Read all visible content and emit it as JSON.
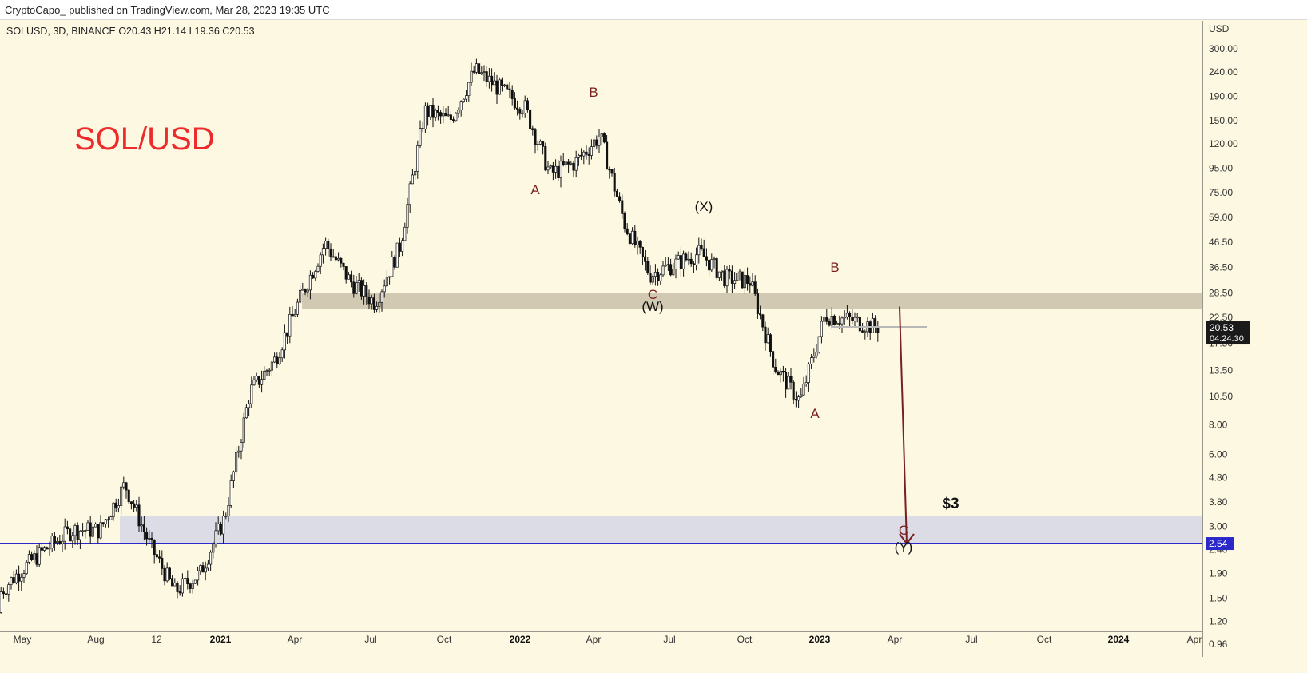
{
  "header": {
    "publish_note": "CryptoCapo_ published on TradingView.com, Mar 28, 2023 19:35 UTC"
  },
  "legend": {
    "symbol": "SOLUSD, 3D, BINANCE",
    "open": "O20.43",
    "high": "H21.14",
    "low": "L19.36",
    "close": "C20.53"
  },
  "title": "SOL/USD",
  "price_axis": {
    "currency": "USD",
    "ticks": [
      "300.00",
      "240.00",
      "190.00",
      "150.00",
      "120.00",
      "95.00",
      "75.00",
      "59.00",
      "46.50",
      "36.50",
      "28.50",
      "22.50",
      "17.50",
      "13.50",
      "10.50",
      "8.00",
      "6.00",
      "4.80",
      "3.80",
      "3.00",
      "2.40",
      "1.90",
      "1.50",
      "1.20",
      "0.96"
    ],
    "last_price": "20.53",
    "countdown": "04:24:30",
    "line_price": "2.54"
  },
  "time_axis": {
    "labels": [
      "May",
      "Aug",
      "12",
      "2021",
      "Apr",
      "Jul",
      "Oct",
      "2022",
      "Apr",
      "Jul",
      "Oct",
      "2023",
      "Apr",
      "Jul",
      "Oct",
      "2024",
      "Apr"
    ]
  },
  "annotations": {
    "target_label": "$3",
    "waves": [
      {
        "text": "A",
        "style": "red"
      },
      {
        "text": "B",
        "style": "red"
      },
      {
        "text": "C",
        "style": "red"
      },
      {
        "text": "(W)",
        "style": "black"
      },
      {
        "text": "(X)",
        "style": "black"
      },
      {
        "text": "B",
        "style": "red"
      },
      {
        "text": "A",
        "style": "red"
      },
      {
        "text": "C",
        "style": "red"
      },
      {
        "text": "(Y)",
        "style": "black"
      }
    ]
  },
  "colors": {
    "background": "#fdf8e1",
    "title": "#ee2b2b",
    "resistance_zone": "#c9c1a8",
    "support_zone": "#dbdce6",
    "horizontal_line": "#2b28c9",
    "arrow": "#7a1f1f",
    "candle_up": "#ffffff",
    "candle_down": "#111111"
  },
  "chart_data": {
    "type": "candlestick",
    "symbol": "SOLUSD",
    "interval": "3D",
    "exchange": "BINANCE",
    "y_scale": "log",
    "ylim": [
      0.85,
      340
    ],
    "last": {
      "open": 20.43,
      "high": 21.14,
      "low": 19.36,
      "close": 20.53
    },
    "approx_closes": [
      {
        "x": "2020-08",
        "y": 2.9
      },
      {
        "x": "2020-09",
        "y": 4.5
      },
      {
        "x": "2020-10",
        "y": 2.5
      },
      {
        "x": "2020-11",
        "y": 1.6
      },
      {
        "x": "2020-12",
        "y": 1.9
      },
      {
        "x": "2021-01",
        "y": 3.3
      },
      {
        "x": "2021-02",
        "y": 11
      },
      {
        "x": "2021-03",
        "y": 15
      },
      {
        "x": "2021-04",
        "y": 27
      },
      {
        "x": "2021-05",
        "y": 46
      },
      {
        "x": "2021-06",
        "y": 32
      },
      {
        "x": "2021-07",
        "y": 26
      },
      {
        "x": "2021-08",
        "y": 45
      },
      {
        "x": "2021-09",
        "y": 165
      },
      {
        "x": "2021-10",
        "y": 150
      },
      {
        "x": "2021-11",
        "y": 245
      },
      {
        "x": "2022-01",
        "y": 170
      },
      {
        "x": "2022-02",
        "y": 90
      },
      {
        "x": "2022-03",
        "y": 100
      },
      {
        "x": "2022-04",
        "y": 130
      },
      {
        "x": "2022-05",
        "y": 55
      },
      {
        "x": "2022-06",
        "y": 34
      },
      {
        "x": "2022-08",
        "y": 42
      },
      {
        "x": "2022-09",
        "y": 33
      },
      {
        "x": "2022-10",
        "y": 32
      },
      {
        "x": "2022-11",
        "y": 14
      },
      {
        "x": "2022-12",
        "y": 10
      },
      {
        "x": "2023-01",
        "y": 23
      },
      {
        "x": "2023-02",
        "y": 22
      },
      {
        "x": "2023-03",
        "y": 20.53
      }
    ],
    "zones": [
      {
        "kind": "resistance",
        "from": 24.5,
        "to": 28.5
      },
      {
        "kind": "support",
        "from": 2.54,
        "to": 3.3
      }
    ],
    "horizontal_line": 2.54,
    "projection": {
      "from": {
        "x": "2023-04",
        "y": 25
      },
      "to": {
        "x": "2023-04",
        "y": 2.54
      }
    }
  }
}
